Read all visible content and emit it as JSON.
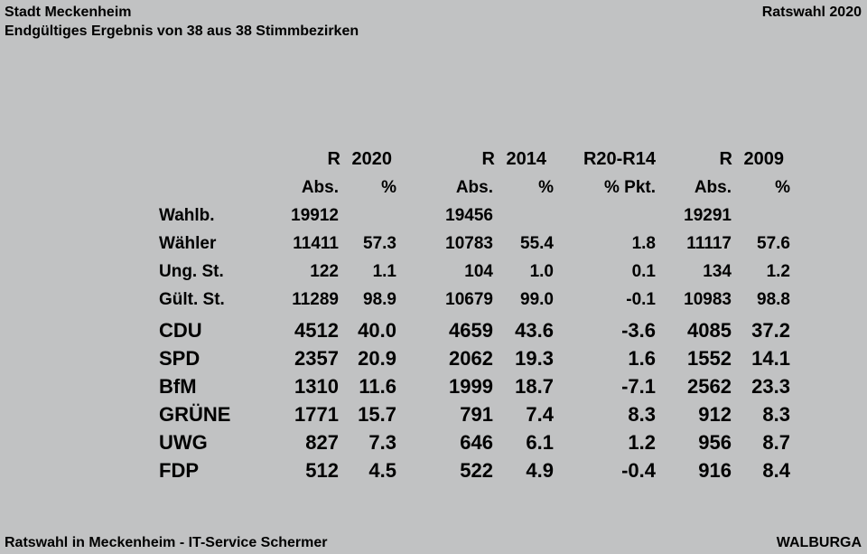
{
  "colors": {
    "background": "#c1c2c3",
    "text": "#000000"
  },
  "header": {
    "title": "Stadt Meckenheim",
    "subtitle": "Endgültiges Ergebnis von 38 aus 38 Stimmbezirken",
    "election_label": "Ratswahl 2020"
  },
  "table": {
    "group_headers": [
      "R 2020",
      "R 2014",
      "R20-R14",
      "R 2009"
    ],
    "sub_headers": [
      "Abs.",
      "%",
      "Abs.",
      "%",
      "% Pkt.",
      "Abs.",
      "%"
    ],
    "rows": [
      {
        "label": "Wahlb.",
        "type": "stat",
        "values": [
          "19912",
          "",
          "19456",
          "",
          "",
          "19291",
          ""
        ]
      },
      {
        "label": "Wähler",
        "type": "stat",
        "values": [
          "11411",
          "57.3",
          "10783",
          "55.4",
          "1.8",
          "11117",
          "57.6"
        ]
      },
      {
        "label": "Ung. St.",
        "type": "stat",
        "values": [
          "122",
          "1.1",
          "104",
          "1.0",
          "0.1",
          "134",
          "1.2"
        ]
      },
      {
        "label": "Gült. St.",
        "type": "stat",
        "values": [
          "11289",
          "98.9",
          "10679",
          "99.0",
          "-0.1",
          "10983",
          "98.8"
        ]
      },
      {
        "label": "CDU",
        "type": "party",
        "values": [
          "4512",
          "40.0",
          "4659",
          "43.6",
          "-3.6",
          "4085",
          "37.2"
        ]
      },
      {
        "label": "SPD",
        "type": "party",
        "values": [
          "2357",
          "20.9",
          "2062",
          "19.3",
          "1.6",
          "1552",
          "14.1"
        ]
      },
      {
        "label": "BfM",
        "type": "party",
        "values": [
          "1310",
          "11.6",
          "1999",
          "18.7",
          "-7.1",
          "2562",
          "23.3"
        ]
      },
      {
        "label": "GRÜNE",
        "type": "party",
        "values": [
          "1771",
          "15.7",
          "791",
          "7.4",
          "8.3",
          "912",
          "8.3"
        ]
      },
      {
        "label": "UWG",
        "type": "party",
        "values": [
          "827",
          "7.3",
          "646",
          "6.1",
          "1.2",
          "956",
          "8.7"
        ]
      },
      {
        "label": "FDP",
        "type": "party",
        "values": [
          "512",
          "4.5",
          "522",
          "4.9",
          "-0.4",
          "916",
          "8.4"
        ]
      }
    ]
  },
  "footer": {
    "left": "Ratswahl in Meckenheim - IT-Service Schermer",
    "right": "WALBURGA"
  }
}
